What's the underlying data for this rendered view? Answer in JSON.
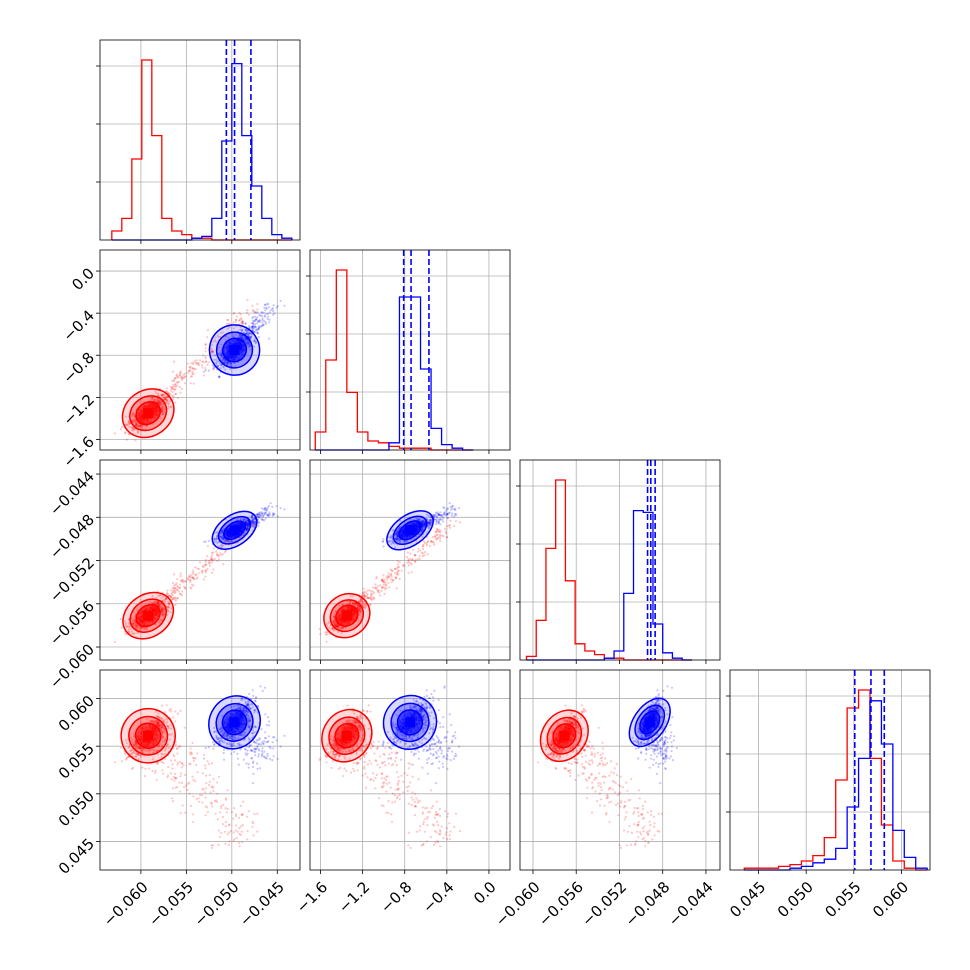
{
  "chart_data": {
    "type": "scatter",
    "title": "",
    "parameters": 4,
    "colors": {
      "series_a": "#ff0000",
      "series_b": "#0000ff"
    },
    "axes": [
      {
        "range": [
          -0.0645,
          -0.0425
        ],
        "ticks": [
          -0.06,
          -0.055,
          -0.05,
          -0.045
        ],
        "tick_labels": [
          "−0.060",
          "−0.055",
          "−0.050",
          "−0.045"
        ]
      },
      {
        "range": [
          -1.7,
          0.2
        ],
        "ticks": [
          -1.6,
          -1.2,
          -0.8,
          -0.4,
          0.0
        ],
        "tick_labels": [
          "−1.6",
          "−1.2",
          "−0.8",
          "−0.4",
          "0.0"
        ]
      },
      {
        "range": [
          -0.0612,
          -0.0427
        ],
        "ticks": [
          -0.06,
          -0.056,
          -0.052,
          -0.048,
          -0.044
        ],
        "tick_labels": [
          "−0.060",
          "−0.056",
          "−0.052",
          "−0.048",
          "−0.044"
        ]
      },
      {
        "range": [
          0.042,
          0.063
        ],
        "ticks": [
          0.045,
          0.05,
          0.055,
          0.06
        ],
        "tick_labels": [
          "0.045",
          "0.050",
          "0.055",
          "0.060"
        ]
      }
    ],
    "grid": true,
    "series": [
      {
        "color": "red",
        "means": [
          -0.0592,
          -1.35,
          -0.0571,
          0.0561
        ],
        "stds": [
          0.0012,
          0.09,
          0.0008,
          0.0012
        ],
        "tail_direction": [
          0.0108,
          0.95,
          0.0082,
          -0.0108
        ]
      },
      {
        "color": "blue",
        "means": [
          -0.0497,
          -0.75,
          -0.0492,
          0.0575
        ],
        "stds": [
          0.0011,
          0.1,
          0.00055,
          0.0012
        ],
        "tail_direction": [
          0.0038,
          0.38,
          0.0017,
          -0.0038
        ]
      }
    ],
    "histograms": [
      {
        "bins": [
          -0.0632,
          -0.0621,
          -0.061,
          -0.0599,
          -0.0588,
          -0.0577,
          -0.0566,
          -0.0555,
          -0.0544,
          -0.0533,
          -0.0522,
          -0.0511,
          -0.05,
          -0.0489,
          -0.0478,
          -0.0467,
          -0.0456,
          -0.0445,
          -0.0434
        ],
        "red": [
          0.05,
          0.12,
          0.45,
          1.0,
          0.58,
          0.12,
          0.05,
          0.03,
          0.01,
          0.01,
          0.0,
          0.0,
          0.0,
          0.0,
          0.0,
          0.0,
          0.0,
          0.0
        ],
        "blue": [
          0.0,
          0.0,
          0.0,
          0.0,
          0.0,
          0.0,
          0.0,
          0.0,
          0.01,
          0.02,
          0.12,
          0.55,
          0.98,
          0.58,
          0.3,
          0.12,
          0.03,
          0.01
        ]
      },
      {
        "bins": [
          -1.65,
          -1.55,
          -1.45,
          -1.35,
          -1.25,
          -1.15,
          -1.05,
          -0.95,
          -0.85,
          -0.75,
          -0.65,
          -0.55,
          -0.45,
          -0.35,
          -0.25,
          -0.15
        ],
        "red": [
          0.1,
          0.5,
          1.0,
          0.32,
          0.1,
          0.05,
          0.04,
          0.02,
          0.01,
          0.01,
          0.01,
          0.0,
          0.0,
          0.0,
          0.0
        ],
        "blue": [
          0.0,
          0.0,
          0.0,
          0.0,
          0.0,
          0.0,
          0.0,
          0.04,
          0.85,
          0.85,
          0.45,
          0.12,
          0.03,
          0.01,
          0.0
        ]
      },
      {
        "bins": [
          -0.0606,
          -0.0597,
          -0.0588,
          -0.0579,
          -0.057,
          -0.0561,
          -0.0552,
          -0.0543,
          -0.0534,
          -0.0525,
          -0.0516,
          -0.0507,
          -0.0498,
          -0.0489,
          -0.048,
          -0.0471,
          -0.0462,
          -0.0453
        ],
        "red": [
          0.02,
          0.22,
          0.62,
          1.0,
          0.44,
          0.09,
          0.05,
          0.03,
          0.01,
          0.01,
          0.0,
          0.0,
          0.0,
          0.0,
          0.0,
          0.0,
          0.0
        ],
        "blue": [
          0.0,
          0.0,
          0.0,
          0.0,
          0.0,
          0.0,
          0.0,
          0.0,
          0.01,
          0.05,
          0.37,
          0.83,
          0.82,
          0.2,
          0.04,
          0.01,
          0.0
        ]
      },
      {
        "bins": [
          0.0435,
          0.0447,
          0.0459,
          0.0471,
          0.0483,
          0.0495,
          0.0507,
          0.0519,
          0.0531,
          0.0543,
          0.0555,
          0.0567,
          0.0579,
          0.0591,
          0.0603,
          0.0615,
          0.0627
        ],
        "red": [
          0.01,
          0.01,
          0.01,
          0.02,
          0.03,
          0.05,
          0.08,
          0.18,
          0.5,
          0.9,
          1.0,
          0.62,
          0.25,
          0.05,
          0.01,
          0.0
        ],
        "blue": [
          0.0,
          0.0,
          0.0,
          0.0,
          0.01,
          0.02,
          0.04,
          0.06,
          0.12,
          0.35,
          0.62,
          0.94,
          0.7,
          0.22,
          0.07,
          0.01
        ]
      }
    ],
    "quantile_lines": [
      [
        -0.0506,
        -0.0497,
        -0.0479
      ],
      [
        -0.81,
        -0.74,
        -0.57
      ],
      [
        -0.0494,
        -0.0491,
        -0.0487
      ],
      [
        0.0551,
        0.0568,
        0.0582
      ]
    ]
  }
}
